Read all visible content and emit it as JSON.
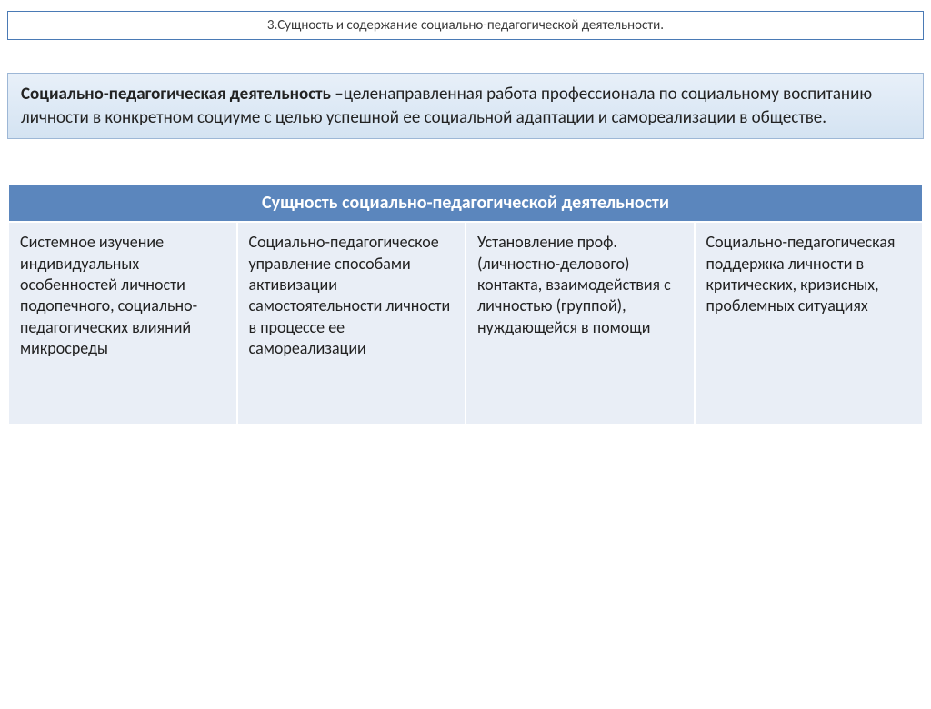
{
  "title": "3.Сущность и содержание социально-педагогической деятельности.",
  "definition": {
    "term": "Социально-педагогическая деятельность",
    "rest": " –целенаправленная  работа профессионала по социальному воспитанию личности в конкретном социуме с целью успешной ее социальной адаптации и самореализации в обществе."
  },
  "table": {
    "header": "Сущность социально-педагогической деятельности",
    "cells": [
      "Системное изучение индивидуальных особенностей личности подопечного, социально-педагогических влияний микросреды",
      "Социально-педагогическое управление способами активизации самостоятельности личности в процессе ее самореализации",
      "Установление проф. (личностно-делового) контакта, взаимодействия с личностью (группой), нуждающейся в помощи",
      "Социально-педагогическая поддержка личности в критических, кризисных, проблемных ситуациях"
    ]
  },
  "colors": {
    "title_border": "#4a7ab5",
    "definition_bg_top": "#e8f0f9",
    "definition_bg_bottom": "#d4e3f2",
    "definition_border": "#9db7d6",
    "table_header_bg": "#5b86bd",
    "table_header_text": "#ffffff",
    "table_cell_bg": "#e9eef6",
    "table_border": "#ffffff",
    "body_text": "#222222"
  },
  "typography": {
    "title_fontsize": 15,
    "definition_fontsize": 19,
    "table_header_fontsize": 20,
    "table_cell_fontsize": 18
  }
}
